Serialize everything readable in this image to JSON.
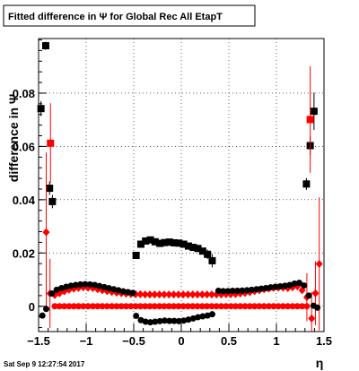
{
  "page": {
    "stamp": "Sat Sep  9 12:27:54 2017"
  },
  "chart_data": {
    "type": "scatter",
    "title": "Fitted difference in  Ψ  for Global Rec All EtapT",
    "xlabel": "η",
    "ylabel": "difference in  Ψ",
    "xlim": [
      -1.5,
      1.5
    ],
    "ylim": [
      -0.0095,
      0.1005
    ],
    "grid": true,
    "x_ticks": [
      {
        "v": -1.5,
        "label": "−1.5"
      },
      {
        "v": -1.0,
        "label": "−1"
      },
      {
        "v": -0.5,
        "label": "−0.5"
      },
      {
        "v": 0.0,
        "label": "0"
      },
      {
        "v": 0.5,
        "label": "0.5"
      },
      {
        "v": 1.0,
        "label": "1"
      },
      {
        "v": 1.5,
        "label": "1.5"
      }
    ],
    "y_ticks": [
      {
        "v": 0.0,
        "label": "0"
      },
      {
        "v": 0.02,
        "label": "0.02"
      },
      {
        "v": 0.04,
        "label": "0.04"
      },
      {
        "v": 0.06,
        "label": "0.06"
      },
      {
        "v": 0.08,
        "label": "0.08"
      }
    ],
    "series": [
      {
        "marker": "square",
        "color": "#000000",
        "points": [
          {
            "x": -1.475,
            "y": 0.0742,
            "err": 0.0028
          },
          {
            "x": -1.425,
            "y": 0.0978,
            "err": 0.0015
          },
          {
            "x": -1.385,
            "y": 0.0443,
            "err": 0.0025
          },
          {
            "x": -1.355,
            "y": 0.0393,
            "err": 0.0025
          },
          {
            "x": -0.475,
            "y": 0.0191
          },
          {
            "x": -0.425,
            "y": 0.0233
          },
          {
            "x": -0.375,
            "y": 0.0245
          },
          {
            "x": -0.325,
            "y": 0.0249
          },
          {
            "x": -0.275,
            "y": 0.0242
          },
          {
            "x": -0.225,
            "y": 0.0236
          },
          {
            "x": -0.175,
            "y": 0.0239
          },
          {
            "x": -0.125,
            "y": 0.0241
          },
          {
            "x": -0.075,
            "y": 0.0238
          },
          {
            "x": -0.025,
            "y": 0.0237
          },
          {
            "x": 0.025,
            "y": 0.0233
          },
          {
            "x": 0.075,
            "y": 0.0226
          },
          {
            "x": 0.125,
            "y": 0.0221
          },
          {
            "x": 0.175,
            "y": 0.0217
          },
          {
            "x": 0.225,
            "y": 0.0207
          },
          {
            "x": 0.275,
            "y": 0.0195,
            "err": 0.0018
          },
          {
            "x": 0.325,
            "y": 0.0171,
            "err": 0.0025
          },
          {
            "x": 1.315,
            "y": 0.0459,
            "err": 0.0022
          },
          {
            "x": 1.355,
            "y": 0.0603,
            "err": 0.0035
          },
          {
            "x": 1.395,
            "y": 0.0732,
            "err": 0.007
          }
        ]
      },
      {
        "marker": "square",
        "color": "#ff0000",
        "points": [
          {
            "x": -1.375,
            "y": 0.0612,
            "err": 0.015
          },
          {
            "x": 1.355,
            "y": 0.0701,
            "err": 0.02
          }
        ]
      },
      {
        "marker": "diamond",
        "color": "#ff0000",
        "points": [
          {
            "x": -1.42,
            "y": 0.0278,
            "err": 0.03
          },
          {
            "x": -1.38,
            "y": 0.0048,
            "err": 0.013
          },
          {
            "x": -1.33,
            "y": 0.0042
          },
          {
            "x": -1.28,
            "y": 0.0049
          },
          {
            "x": -1.23,
            "y": 0.0056
          },
          {
            "x": -1.18,
            "y": 0.0062
          },
          {
            "x": -1.13,
            "y": 0.0066
          },
          {
            "x": -1.08,
            "y": 0.0069
          },
          {
            "x": -1.03,
            "y": 0.0071
          },
          {
            "x": -0.98,
            "y": 0.007
          },
          {
            "x": -0.93,
            "y": 0.0068
          },
          {
            "x": -0.88,
            "y": 0.0064
          },
          {
            "x": -0.83,
            "y": 0.006
          },
          {
            "x": -0.78,
            "y": 0.0057
          },
          {
            "x": -0.73,
            "y": 0.0054
          },
          {
            "x": -0.68,
            "y": 0.0051
          },
          {
            "x": -0.63,
            "y": 0.0049
          },
          {
            "x": -0.58,
            "y": 0.0047
          },
          {
            "x": -0.53,
            "y": 0.0046
          },
          {
            "x": -0.48,
            "y": 0.0045
          },
          {
            "x": -0.43,
            "y": 0.0045
          },
          {
            "x": -0.38,
            "y": 0.0044
          },
          {
            "x": -0.33,
            "y": 0.0044
          },
          {
            "x": -0.28,
            "y": 0.0044
          },
          {
            "x": -0.23,
            "y": 0.0044
          },
          {
            "x": -0.18,
            "y": 0.0044
          },
          {
            "x": -0.13,
            "y": 0.0044
          },
          {
            "x": -0.08,
            "y": 0.0044
          },
          {
            "x": -0.03,
            "y": 0.0044
          },
          {
            "x": 0.02,
            "y": 0.0044
          },
          {
            "x": 0.07,
            "y": 0.0044
          },
          {
            "x": 0.12,
            "y": 0.0044
          },
          {
            "x": 0.17,
            "y": 0.0044
          },
          {
            "x": 0.22,
            "y": 0.0044
          },
          {
            "x": 0.27,
            "y": 0.0044
          },
          {
            "x": 0.32,
            "y": 0.0044
          },
          {
            "x": 0.37,
            "y": 0.0044
          },
          {
            "x": 0.42,
            "y": 0.0044
          },
          {
            "x": 0.47,
            "y": 0.0045
          },
          {
            "x": 0.52,
            "y": 0.0045
          },
          {
            "x": 0.57,
            "y": 0.0046
          },
          {
            "x": 0.62,
            "y": 0.0048
          },
          {
            "x": 0.67,
            "y": 0.005
          },
          {
            "x": 0.72,
            "y": 0.0053
          },
          {
            "x": 0.77,
            "y": 0.0057
          },
          {
            "x": 0.82,
            "y": 0.006
          },
          {
            "x": 0.87,
            "y": 0.0064
          },
          {
            "x": 0.92,
            "y": 0.0066
          },
          {
            "x": 0.97,
            "y": 0.0069
          },
          {
            "x": 1.02,
            "y": 0.007
          },
          {
            "x": 1.07,
            "y": 0.007
          },
          {
            "x": 1.12,
            "y": 0.0068
          },
          {
            "x": 1.17,
            "y": 0.0071
          },
          {
            "x": 1.22,
            "y": 0.0075
          },
          {
            "x": 1.27,
            "y": 0.006
          },
          {
            "x": 1.32,
            "y": 0.0034,
            "err": 0.009
          },
          {
            "x": 1.37,
            "y": -0.0046,
            "err": 0.01
          },
          {
            "x": 1.41,
            "y": 0.0049,
            "err": 0.012
          },
          {
            "x": 1.45,
            "y": 0.0159,
            "err": 0.025
          }
        ]
      },
      {
        "marker": "circle",
        "color": "#ff0000",
        "points": [
          {
            "x": -1.33,
            "y": 0.0
          },
          {
            "x": -1.28,
            "y": 0.0
          },
          {
            "x": -1.23,
            "y": 0.0
          },
          {
            "x": -1.18,
            "y": 0.0
          },
          {
            "x": -1.13,
            "y": 0.0
          },
          {
            "x": -1.08,
            "y": 0.0
          },
          {
            "x": -1.03,
            "y": 0.0
          },
          {
            "x": -0.98,
            "y": 0.0
          },
          {
            "x": -0.93,
            "y": 0.0
          },
          {
            "x": -0.88,
            "y": 0.0
          },
          {
            "x": -0.83,
            "y": 0.0
          },
          {
            "x": -0.78,
            "y": 0.0
          },
          {
            "x": -0.73,
            "y": 0.0
          },
          {
            "x": -0.68,
            "y": 0.0
          },
          {
            "x": -0.63,
            "y": 0.0
          },
          {
            "x": -0.58,
            "y": 0.0
          },
          {
            "x": -0.53,
            "y": 0.0
          },
          {
            "x": -0.48,
            "y": 0.0
          },
          {
            "x": -0.43,
            "y": 0.0
          },
          {
            "x": -0.38,
            "y": 0.0
          },
          {
            "x": -0.33,
            "y": 0.0
          },
          {
            "x": -0.28,
            "y": 0.0
          },
          {
            "x": -0.23,
            "y": 0.0
          },
          {
            "x": -0.18,
            "y": 0.0
          },
          {
            "x": -0.13,
            "y": 0.0
          },
          {
            "x": -0.08,
            "y": 0.0
          },
          {
            "x": -0.03,
            "y": 0.0
          },
          {
            "x": 0.02,
            "y": 0.0
          },
          {
            "x": 0.07,
            "y": 0.0
          },
          {
            "x": 0.12,
            "y": 0.0
          },
          {
            "x": 0.17,
            "y": 0.0
          },
          {
            "x": 0.22,
            "y": 0.0
          },
          {
            "x": 0.27,
            "y": 0.0
          },
          {
            "x": 0.32,
            "y": 0.0
          },
          {
            "x": 0.37,
            "y": 0.0
          },
          {
            "x": 0.42,
            "y": 0.0
          },
          {
            "x": 0.47,
            "y": 0.0
          },
          {
            "x": 0.52,
            "y": 0.0
          },
          {
            "x": 0.57,
            "y": 0.0
          },
          {
            "x": 0.62,
            "y": 0.0
          },
          {
            "x": 0.67,
            "y": 0.0
          },
          {
            "x": 0.72,
            "y": 0.0
          },
          {
            "x": 0.77,
            "y": 0.0
          },
          {
            "x": 0.82,
            "y": 0.0
          },
          {
            "x": 0.87,
            "y": 0.0
          },
          {
            "x": 0.92,
            "y": 0.0
          },
          {
            "x": 0.97,
            "y": 0.0
          },
          {
            "x": 1.02,
            "y": 0.0
          },
          {
            "x": 1.07,
            "y": 0.0
          },
          {
            "x": 1.12,
            "y": 0.0
          },
          {
            "x": 1.17,
            "y": 0.0
          },
          {
            "x": 1.22,
            "y": 0.0
          },
          {
            "x": 1.27,
            "y": 0.0
          },
          {
            "x": 1.32,
            "y": 0.0
          }
        ]
      },
      {
        "marker": "circle",
        "color": "#000000",
        "points": [
          {
            "x": -1.46,
            "y": -0.0035
          },
          {
            "x": -1.42,
            "y": -0.001
          },
          {
            "x": -1.36,
            "y": 0.0048
          },
          {
            "x": -1.31,
            "y": 0.0062
          },
          {
            "x": -1.26,
            "y": 0.0068
          },
          {
            "x": -1.21,
            "y": 0.0073
          },
          {
            "x": -1.16,
            "y": 0.0077
          },
          {
            "x": -1.11,
            "y": 0.008
          },
          {
            "x": -1.06,
            "y": 0.0082
          },
          {
            "x": -1.01,
            "y": 0.0083
          },
          {
            "x": -0.96,
            "y": 0.0082
          },
          {
            "x": -0.91,
            "y": 0.008
          },
          {
            "x": -0.86,
            "y": 0.0076
          },
          {
            "x": -0.81,
            "y": 0.0072
          },
          {
            "x": -0.76,
            "y": 0.0068
          },
          {
            "x": -0.71,
            "y": 0.0064
          },
          {
            "x": -0.66,
            "y": 0.006
          },
          {
            "x": -0.61,
            "y": 0.0056
          },
          {
            "x": -0.56,
            "y": 0.0053
          },
          {
            "x": -0.51,
            "y": 0.005
          },
          {
            "x": -0.475,
            "y": -0.0036
          },
          {
            "x": -0.425,
            "y": -0.0052
          },
          {
            "x": -0.375,
            "y": -0.0058
          },
          {
            "x": -0.325,
            "y": -0.006
          },
          {
            "x": -0.275,
            "y": -0.0058
          },
          {
            "x": -0.225,
            "y": -0.0056
          },
          {
            "x": -0.175,
            "y": -0.0054
          },
          {
            "x": -0.125,
            "y": -0.0055
          },
          {
            "x": -0.075,
            "y": -0.0055
          },
          {
            "x": -0.025,
            "y": -0.0056
          },
          {
            "x": 0.025,
            "y": -0.0054
          },
          {
            "x": 0.075,
            "y": -0.005
          },
          {
            "x": 0.125,
            "y": -0.0046
          },
          {
            "x": 0.175,
            "y": -0.0041
          },
          {
            "x": 0.225,
            "y": -0.0038
          },
          {
            "x": 0.275,
            "y": -0.0035
          },
          {
            "x": 0.325,
            "y": -0.003
          },
          {
            "x": 0.39,
            "y": 0.0058
          },
          {
            "x": 0.44,
            "y": 0.0057
          },
          {
            "x": 0.49,
            "y": 0.0057
          },
          {
            "x": 0.54,
            "y": 0.0058
          },
          {
            "x": 0.59,
            "y": 0.0058
          },
          {
            "x": 0.64,
            "y": 0.0059
          },
          {
            "x": 0.69,
            "y": 0.006
          },
          {
            "x": 0.74,
            "y": 0.0062
          },
          {
            "x": 0.79,
            "y": 0.0064
          },
          {
            "x": 0.84,
            "y": 0.0066
          },
          {
            "x": 0.89,
            "y": 0.0068
          },
          {
            "x": 0.94,
            "y": 0.0071
          },
          {
            "x": 0.99,
            "y": 0.0073
          },
          {
            "x": 1.04,
            "y": 0.0075
          },
          {
            "x": 1.09,
            "y": 0.0077
          },
          {
            "x": 1.14,
            "y": 0.008
          },
          {
            "x": 1.19,
            "y": 0.0085
          },
          {
            "x": 1.24,
            "y": 0.0088
          },
          {
            "x": 1.29,
            "y": 0.0078
          },
          {
            "x": 1.34,
            "y": 0.004
          },
          {
            "x": 1.39,
            "y": 0.0002
          },
          {
            "x": 1.43,
            "y": -0.0005
          }
        ]
      }
    ]
  }
}
